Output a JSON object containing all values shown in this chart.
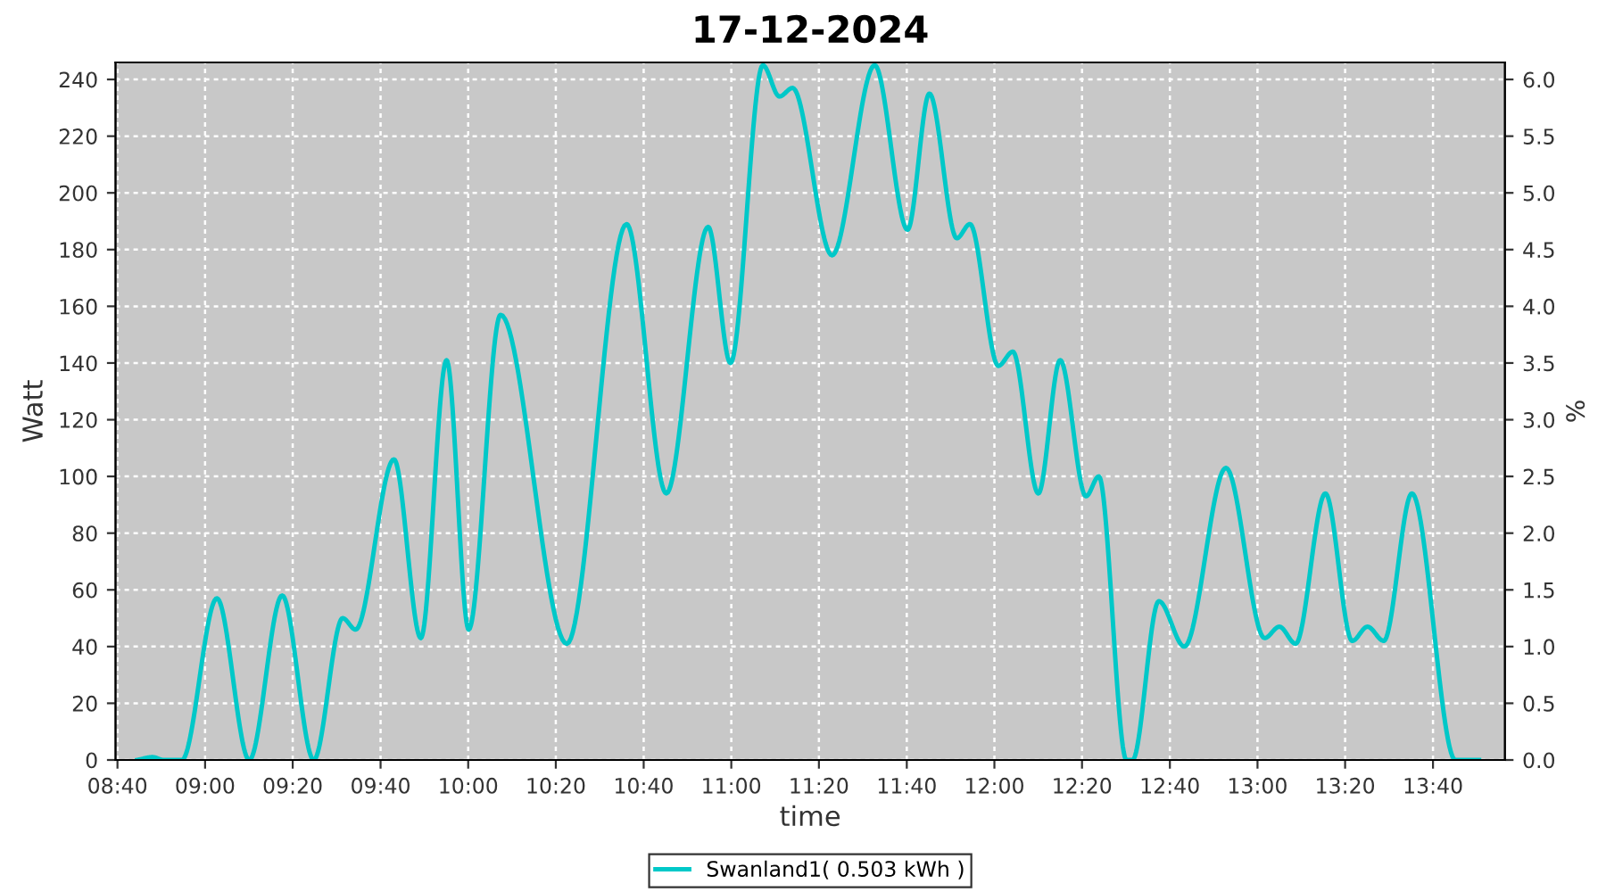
{
  "chart_data": {
    "type": "line",
    "title": "17-12-2024",
    "xlabel": "time",
    "ylabel": "Watt",
    "y2label": "%",
    "series": [
      {
        "name": "Swanland1( 0.503 kWh )",
        "color": "#00c8c8",
        "x": [
          8.742,
          8.8,
          8.843,
          8.912,
          9.045,
          9.168,
          9.293,
          9.413,
          9.523,
          9.572,
          9.718,
          9.82,
          9.918,
          10.002,
          10.123,
          10.375,
          10.602,
          10.753,
          10.912,
          10.997,
          11.12,
          11.183,
          11.233,
          11.383,
          11.545,
          11.67,
          11.753,
          11.857,
          11.907,
          12.015,
          12.07,
          12.167,
          12.25,
          12.348,
          12.397,
          12.502,
          12.525,
          12.625,
          12.722,
          12.88,
          13.027,
          13.083,
          13.145,
          13.258,
          13.36,
          13.418,
          13.48,
          13.587,
          13.752,
          13.842
        ],
        "values": [
          0,
          1,
          0,
          0,
          57,
          0,
          58,
          0,
          50,
          46,
          106,
          43,
          141,
          46,
          157,
          41,
          189,
          94,
          188,
          140,
          245,
          234,
          237,
          178,
          245,
          187,
          235,
          184,
          189,
          139,
          144,
          94,
          141,
          93,
          100,
          0,
          0,
          56,
          40,
          103,
          43,
          47,
          41,
          94,
          42,
          47,
          42,
          94,
          0,
          0
        ]
      }
    ],
    "xlim": [
      8.66,
      13.94
    ],
    "xticks": [
      {
        "value": 8.667,
        "label": "08:40"
      },
      {
        "value": 9,
        "label": "09:00"
      },
      {
        "value": 9.333,
        "label": "09:20"
      },
      {
        "value": 9.667,
        "label": "09:40"
      },
      {
        "value": 10,
        "label": "10:00"
      },
      {
        "value": 10.333,
        "label": "10:20"
      },
      {
        "value": 10.667,
        "label": "10:40"
      },
      {
        "value": 11,
        "label": "11:00"
      },
      {
        "value": 11.333,
        "label": "11:20"
      },
      {
        "value": 11.667,
        "label": "11:40"
      },
      {
        "value": 12,
        "label": "12:00"
      },
      {
        "value": 12.333,
        "label": "12:20"
      },
      {
        "value": 12.667,
        "label": "12:40"
      },
      {
        "value": 13,
        "label": "13:00"
      },
      {
        "value": 13.333,
        "label": "13:20"
      },
      {
        "value": 13.667,
        "label": "13:40"
      }
    ],
    "ylim": [
      0,
      246
    ],
    "yticks": [
      0,
      20,
      40,
      60,
      80,
      100,
      120,
      140,
      160,
      180,
      200,
      220,
      240
    ],
    "y2lim": [
      0,
      6.15
    ],
    "y2ticks": [
      {
        "value": 0,
        "label": "0.0"
      },
      0.5,
      {
        "value": 1,
        "label": "1.0"
      },
      1.5,
      {
        "value": 2,
        "label": "2.0"
      },
      2.5,
      {
        "value": 3,
        "label": "3.0"
      },
      3.5,
      {
        "value": 4,
        "label": "4.0"
      },
      4.5,
      {
        "value": 5,
        "label": "5.0"
      },
      5.5,
      {
        "value": 6,
        "label": "6.0"
      }
    ],
    "grid": true,
    "legend": "bottom",
    "marker": "none",
    "line_style": "solid"
  }
}
